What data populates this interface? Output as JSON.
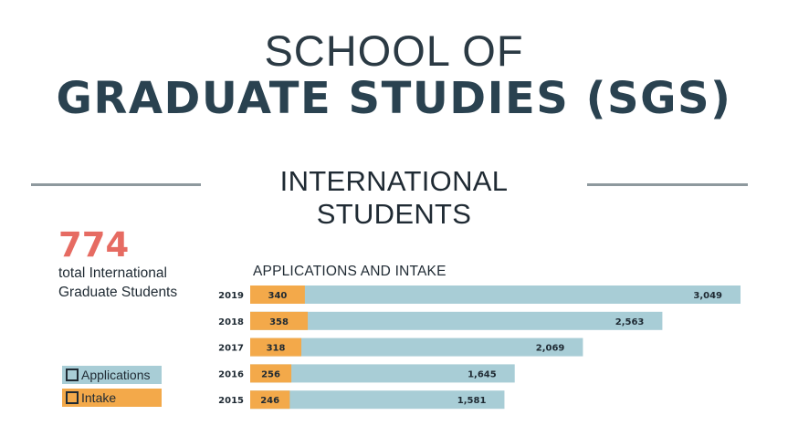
{
  "header": {
    "line1": "SCHOOL OF",
    "line2": "GRADUATE STUDIES (SGS)"
  },
  "section": {
    "heading": "INTERNATIONAL STUDENTS"
  },
  "stat": {
    "total": "774",
    "label": "total International Graduate Students"
  },
  "legend": {
    "applications": "Applications",
    "intake": "Intake"
  },
  "colors": {
    "applications": "#a8cdd6",
    "intake": "#f3a94a",
    "rule": "#8e999e",
    "accent": "#e66b62"
  },
  "chart_data": {
    "type": "bar",
    "orientation": "horizontal",
    "title": "APPLICATIONS AND INTAKE",
    "categories": [
      "2019",
      "2018",
      "2017",
      "2016",
      "2015"
    ],
    "series": [
      {
        "name": "Applications",
        "values": [
          3049,
          2563,
          2069,
          1645,
          1581
        ],
        "labels": [
          "3,049",
          "2,563",
          "2,069",
          "1,645",
          "1,581"
        ]
      },
      {
        "name": "Intake",
        "values": [
          340,
          358,
          318,
          256,
          246
        ],
        "labels": [
          "340",
          "358",
          "318",
          "256",
          "246"
        ]
      }
    ],
    "overlapping": true,
    "legend_position": "left",
    "grid": false
  }
}
